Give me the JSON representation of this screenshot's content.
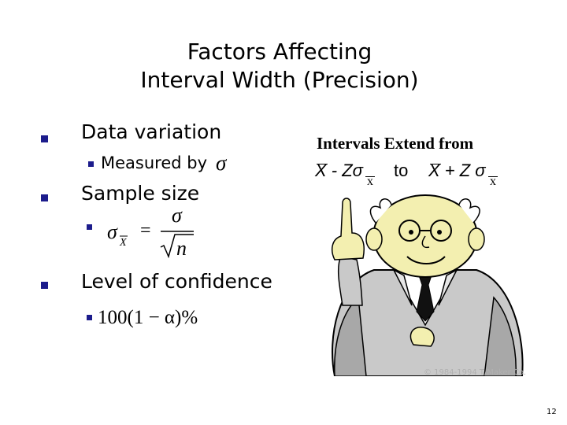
{
  "slide": {
    "title_line1": "Factors Affecting",
    "title_line2": "Interval Width (Precision)",
    "bullets": {
      "data_variation": "Data variation",
      "measured_by": "Measured by",
      "sample_size": "Sample size",
      "level_of_confidence": "Level of confidence"
    },
    "formulas": {
      "sigma": "σ",
      "sigma_xbar_sigma": "σ",
      "sigma_xbar_sub": "X",
      "equals": "=",
      "sqrt_n": "n",
      "confidence": "100(1 − α)%"
    },
    "intervals": {
      "heading": "Intervals Extend from",
      "lower": "X - Zσ",
      "sub_x": "x",
      "to": "to",
      "upper": "X + Z σ"
    },
    "copyright": "© 1984-1994 T/Maker Co.",
    "page_number": "12"
  },
  "colors": {
    "bullet": "#1c1c8c",
    "text": "#000000",
    "copyright": "#b0b0b0"
  },
  "icons": {
    "clipart": "professor-pointing-clipart"
  }
}
